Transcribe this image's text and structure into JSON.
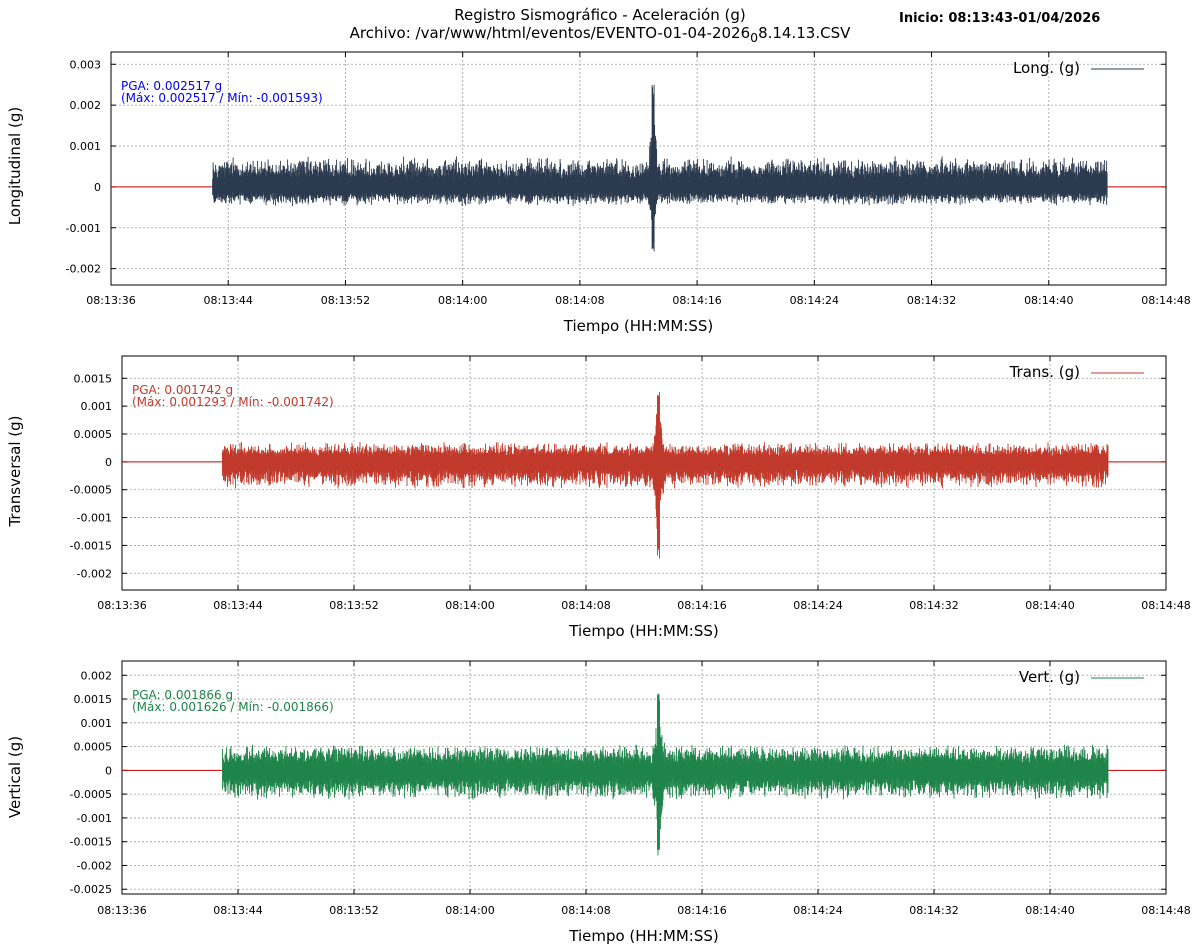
{
  "header": {
    "title": "Registro Sismográfico - Aceleración (g)",
    "file_label": "Archivo: /var/www/html/eventos/EVENTO-01-04-2026",
    "file_subscript": "0",
    "file_suffix": "8.14.13.CSV",
    "inicio": "Inicio: 08:13:43-01/04/2026"
  },
  "colors": {
    "longitudinal": "#2b3a4e",
    "transversal": "#c0392b",
    "vertical": "#1e8449",
    "zero_line": "#cc0000",
    "grid": "#a0a0a0"
  },
  "chart_data": [
    {
      "type": "line",
      "ylabel": "Longitudinal (g)",
      "xlabel": "Tiempo (HH:MM:SS)",
      "legend": "Long. (g)",
      "legend_position": "top-right",
      "grid": true,
      "pga_label": "PGA: 0.002517 g",
      "maxmin_label": "(Máx: 0.002517 / Mín: -0.001593)",
      "pga": 0.002517,
      "max": 0.002517,
      "min": -0.001593,
      "xlim": [
        "08:13:36",
        "08:14:48"
      ],
      "x_ticks": [
        "08:13:36",
        "08:13:44",
        "08:13:52",
        "08:14:00",
        "08:14:08",
        "08:14:16",
        "08:14:24",
        "08:14:32",
        "08:14:40",
        "08:14:48"
      ],
      "ylim": [
        -0.0024,
        0.0033
      ],
      "y_ticks": [
        -0.002,
        -0.001,
        0,
        0.001,
        0.002,
        0.003
      ],
      "y_tick_labels": [
        "-0.002",
        "-0.001",
        "0",
        "0.001",
        "0.002",
        "0.003"
      ],
      "signal_start": "08:13:43",
      "signal_end": "08:14:44",
      "event_time": "08:14:13"
    },
    {
      "type": "line",
      "ylabel": "Transversal (g)",
      "xlabel": "Tiempo (HH:MM:SS)",
      "legend": "Trans. (g)",
      "legend_position": "top-right",
      "grid": true,
      "pga_label": "PGA: 0.001742 g",
      "maxmin_label": "(Máx: 0.001293 / Mín: -0.001742)",
      "pga": 0.001742,
      "max": 0.001293,
      "min": -0.001742,
      "xlim": [
        "08:13:36",
        "08:14:48"
      ],
      "x_ticks": [
        "08:13:36",
        "08:13:44",
        "08:13:52",
        "08:14:00",
        "08:14:08",
        "08:14:16",
        "08:14:24",
        "08:14:32",
        "08:14:40",
        "08:14:48"
      ],
      "ylim": [
        -0.0023,
        0.0019
      ],
      "y_ticks": [
        -0.002,
        -0.0015,
        -0.001,
        -0.0005,
        0,
        0.0005,
        0.001,
        0.0015
      ],
      "y_tick_labels": [
        "-0.002",
        "-0.0015",
        "-0.001",
        "-0.0005",
        "0",
        "0.0005",
        "0.001",
        "0.0015"
      ],
      "signal_start": "08:13:43",
      "signal_end": "08:14:44",
      "event_time": "08:14:13"
    },
    {
      "type": "line",
      "ylabel": "Vertical (g)",
      "xlabel": "Tiempo (HH:MM:SS)",
      "legend": "Vert. (g)",
      "legend_position": "top-right",
      "grid": true,
      "pga_label": "PGA: 0.001866 g",
      "maxmin_label": "(Máx: 0.001626 / Mín: -0.001866)",
      "pga": 0.001866,
      "max": 0.001626,
      "min": -0.001866,
      "xlim": [
        "08:13:36",
        "08:14:48"
      ],
      "x_ticks": [
        "08:13:36",
        "08:13:44",
        "08:13:52",
        "08:14:00",
        "08:14:08",
        "08:14:16",
        "08:14:24",
        "08:14:32",
        "08:14:40",
        "08:14:48"
      ],
      "ylim": [
        -0.0026,
        0.0023
      ],
      "y_ticks": [
        -0.0025,
        -0.002,
        -0.0015,
        -0.001,
        -0.0005,
        0,
        0.0005,
        0.001,
        0.0015,
        0.002
      ],
      "y_tick_labels": [
        "-0.0025",
        "-0.002",
        "-0.0015",
        "-0.001",
        "-0.0005",
        "0",
        "0.0005",
        "0.001",
        "0.0015",
        "0.002"
      ],
      "signal_start": "08:13:43",
      "signal_end": "08:14:44",
      "event_time": "08:14:13"
    }
  ]
}
